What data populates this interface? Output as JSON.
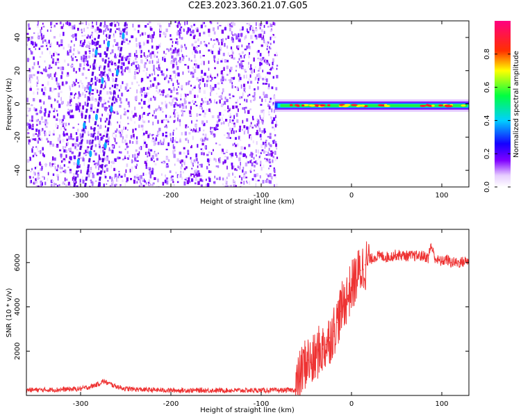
{
  "title": "C2E3.2023.360.21.07.G05",
  "colors": {
    "snr_line": "#ee3333",
    "scatter_dot": "#7700ee",
    "axis": "#000000"
  },
  "chart_data": [
    {
      "type": "heatmap",
      "xlabel": "Height of straight line (km)",
      "ylabel": "Frequency (Hz)",
      "xlim": [
        -360,
        130
      ],
      "ylim": [
        -50,
        50
      ],
      "xticks": [
        -300,
        -200,
        -100,
        0,
        100
      ],
      "xtick_labels": [
        "-300",
        "-200",
        "-100",
        "0",
        "100"
      ],
      "yticks": [
        -40,
        -20,
        0,
        20,
        40
      ],
      "ytick_labels": [
        "-40",
        "-20",
        "0",
        "20",
        "40"
      ],
      "noise_region_x": [
        -360,
        -83
      ],
      "signal_band_x": [
        -85,
        130
      ],
      "signal_band_frequency_hz": -1,
      "streaks": [
        {
          "x_at_bottom": -307,
          "x_at_top": -277
        },
        {
          "x_at_bottom": -295,
          "x_at_top": -265
        },
        {
          "x_at_bottom": -280,
          "x_at_top": -250
        }
      ],
      "colorbar": {
        "label": "Normalized spectral amplitude",
        "range": [
          0,
          1
        ],
        "ticks": [
          0.0,
          0.2,
          0.4,
          0.6,
          0.8
        ],
        "tick_labels": [
          "0.0",
          "0.2",
          "0.4",
          "0.6",
          "0.8"
        ],
        "colormap": "rainbow (white-violet-blue-cyan-green-yellow-red-magenta)"
      }
    },
    {
      "type": "line",
      "xlabel": "Height of straight line (km)",
      "ylabel": "SNR (10 * v/v)",
      "xlim": [
        -360,
        130
      ],
      "ylim": [
        0,
        7500
      ],
      "xticks": [
        -300,
        -200,
        -100,
        0,
        100
      ],
      "xtick_labels": [
        "-300",
        "-200",
        "-100",
        "0",
        "100"
      ],
      "yticks": [
        2000,
        4000,
        6000
      ],
      "ytick_labels": [
        "2000",
        "4000",
        "6000"
      ],
      "series": [
        {
          "x": [
            -360,
            -340,
            -320,
            -300,
            -290,
            -280,
            -275,
            -270,
            -260,
            -250,
            -230,
            -200,
            -180,
            -150,
            -120,
            -100,
            -80,
            -62,
            -57,
            -52,
            -48,
            -44,
            -40,
            -36,
            -32,
            -28,
            -24,
            -20,
            -16,
            -12,
            -8,
            -4,
            0,
            5,
            10,
            15,
            20,
            25,
            30,
            40,
            50,
            60,
            70,
            80,
            85,
            88,
            92,
            95,
            100,
            105,
            110,
            120,
            130
          ],
          "y": [
            250,
            250,
            270,
            300,
            380,
            520,
            650,
            560,
            400,
            300,
            260,
            230,
            230,
            230,
            230,
            230,
            230,
            250,
            900,
            1400,
            1600,
            1400,
            1700,
            2000,
            2100,
            2300,
            2600,
            2900,
            3300,
            3800,
            4200,
            4500,
            4900,
            5300,
            5650,
            5900,
            6100,
            6250,
            6300,
            6250,
            6350,
            6300,
            6300,
            6300,
            6200,
            6800,
            6250,
            6100,
            6050,
            6150,
            6000,
            6000,
            6100
          ]
        }
      ]
    }
  ]
}
